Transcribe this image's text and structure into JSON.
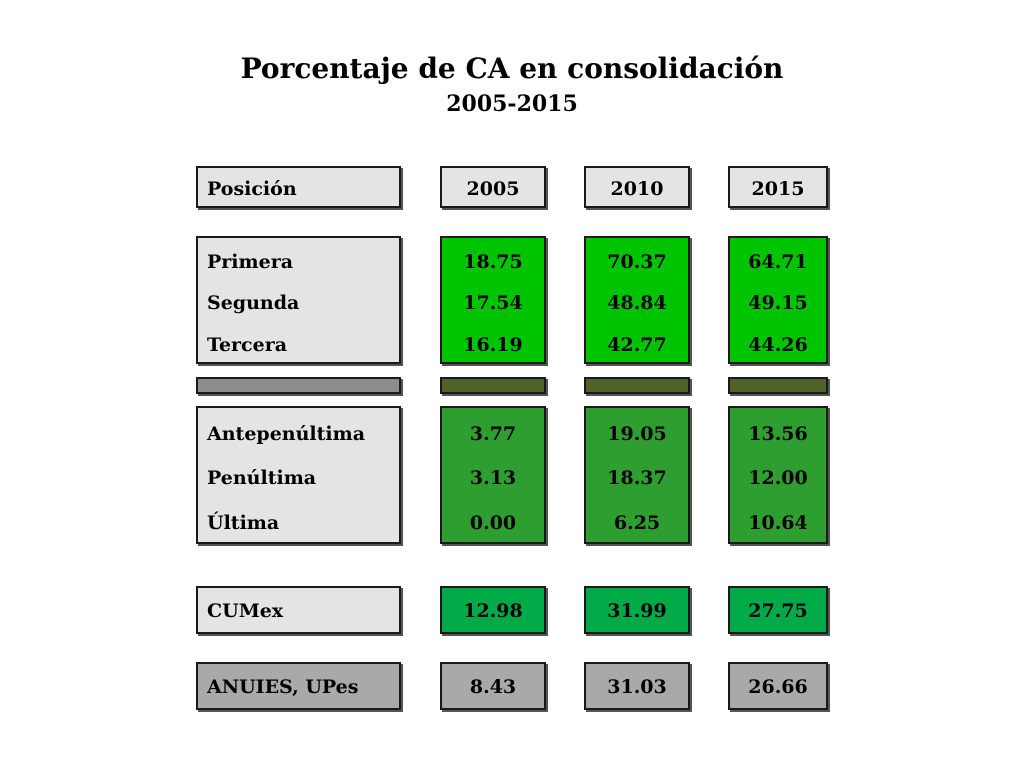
{
  "chart_data": {
    "type": "table",
    "title": "Porcentaje de CA en consolidación",
    "subtitle": "2005-2015",
    "header": {
      "label": "Posición",
      "years": [
        "2005",
        "2010",
        "2015"
      ]
    },
    "groups": [
      {
        "rows": [
          {
            "label": "Primera",
            "values": [
              "18.75",
              "70.37",
              "64.71"
            ]
          },
          {
            "label": "Segunda",
            "values": [
              "17.54",
              "48.84",
              "49.15"
            ]
          },
          {
            "label": "Tercera",
            "values": [
              "16.19",
              "42.77",
              "44.26"
            ]
          }
        ]
      },
      {
        "rows": [
          {
            "label": "Antepenúltima",
            "values": [
              "3.77",
              "19.05",
              "13.56"
            ]
          },
          {
            "label": "Penúltima",
            "values": [
              "3.13",
              "18.37",
              "12.00"
            ]
          },
          {
            "label": "Última",
            "values": [
              "0.00",
              "6.25",
              "10.64"
            ]
          }
        ]
      },
      {
        "rows": [
          {
            "label": "CUMex",
            "values": [
              "12.98",
              "31.99",
              "27.75"
            ]
          }
        ]
      },
      {
        "rows": [
          {
            "label": "ANUIES, UPes",
            "values": [
              "8.43",
              "31.03",
              "26.66"
            ]
          }
        ]
      }
    ]
  },
  "colors": {
    "label_fill": "#e4e4e4",
    "header_fill": "#e4e4e4",
    "top_group_fill": "#00c400",
    "bottom_group_fill": "#2f9e30",
    "cumex_fill": "#00aa46",
    "anuies_fill": "#a9a9a9",
    "separator_label_fill": "#8c8c8c",
    "separator_value_fill": "#4f6228"
  }
}
